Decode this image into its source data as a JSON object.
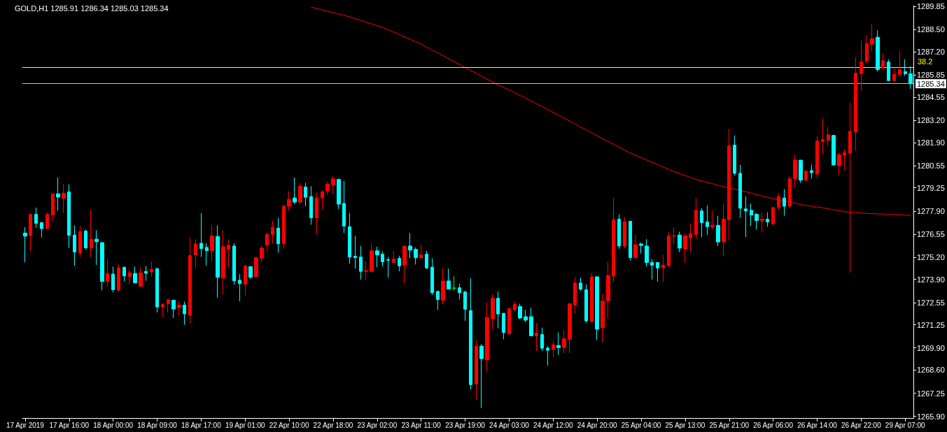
{
  "chart_data": {
    "type": "candlestick",
    "title": "GOLD,H1 1285.91 1286.34 1285.03 1285.34",
    "categories": [
      "17 Apr 2019",
      null,
      null,
      null,
      null,
      null,
      null,
      null,
      "17 Apr 16:00",
      null,
      null,
      null,
      null,
      null,
      null,
      null,
      "18 Apr 00:00",
      null,
      null,
      null,
      null,
      null,
      null,
      null,
      "18 Apr 09:00",
      null,
      null,
      null,
      null,
      null,
      null,
      null,
      "18 Apr 17:00",
      null,
      null,
      null,
      null,
      null,
      null,
      null,
      "19 Apr 01:00",
      null,
      null,
      null,
      null,
      null,
      null,
      null,
      "22 Apr 10:00",
      null,
      null,
      null,
      null,
      null,
      null,
      null,
      "22 Apr 18:00",
      null,
      null,
      null,
      null,
      null,
      null,
      null,
      "23 Apr 02:00",
      null,
      null,
      null,
      null,
      null,
      null,
      null,
      "23 Apr 11:00",
      null,
      null,
      null,
      null,
      null,
      null,
      null,
      "23 Apr 19:00",
      null,
      null,
      null,
      null,
      null,
      null,
      null,
      "24 Apr 03:00",
      null,
      null,
      null,
      null,
      null,
      null,
      null,
      "24 Apr 12:00",
      null,
      null,
      null,
      null,
      null,
      null,
      null,
      "24 Apr 20:00",
      null,
      null,
      null,
      null,
      null,
      null,
      null,
      "25 Apr 04:00",
      null,
      null,
      null,
      null,
      null,
      null,
      null,
      "25 Apr 13:00",
      null,
      null,
      null,
      null,
      null,
      null,
      null,
      "25 Apr 21:00",
      null,
      null,
      null,
      null,
      null,
      null,
      null,
      "26 Apr 06:00",
      null,
      null,
      null,
      null,
      null,
      null,
      null,
      "26 Apr 14:00",
      null,
      null,
      null,
      null,
      null,
      null,
      null,
      "26 Apr 22:00",
      null,
      null,
      null,
      null,
      null,
      null,
      null,
      "29 Apr 07:00",
      null
    ],
    "ohlc": [
      [
        1276.61,
        1276.95,
        1274.9,
        1276.43
      ],
      [
        1276.47,
        1277.74,
        1275.54,
        1277.7
      ],
      [
        1277.7,
        1278.1,
        1276.91,
        1277.18
      ],
      [
        1277.22,
        1277.22,
        1276.35,
        1276.87
      ],
      [
        1276.87,
        1277.82,
        1276.87,
        1277.7
      ],
      [
        1277.67,
        1278.9,
        1277.27,
        1278.9
      ],
      [
        1278.9,
        1279.86,
        1277.91,
        1278.71
      ],
      [
        1278.63,
        1279.46,
        1277.79,
        1278.93
      ],
      [
        1279.02,
        1279.46,
        1275.74,
        1276.47
      ],
      [
        1276.49,
        1277.06,
        1274.7,
        1275.5
      ],
      [
        1275.46,
        1277.02,
        1275.22,
        1276.69
      ],
      [
        1276.73,
        1276.81,
        1275.66,
        1275.74
      ],
      [
        1275.74,
        1277.98,
        1275.22,
        1276.25
      ],
      [
        1276.25,
        1276.77,
        1274.74,
        1276.1
      ],
      [
        1276.05,
        1276.05,
        1273.26,
        1273.78
      ],
      [
        1273.78,
        1275.09,
        1273.46,
        1274.25
      ],
      [
        1274.21,
        1274.65,
        1273.14,
        1273.3
      ],
      [
        1273.26,
        1274.77,
        1273.26,
        1274.57
      ],
      [
        1274.61,
        1274.65,
        1273.78,
        1274.1
      ],
      [
        1274.06,
        1274.45,
        1273.62,
        1274.29
      ],
      [
        1274.25,
        1274.65,
        1273.66,
        1273.7
      ],
      [
        1273.5,
        1274.61,
        1273.5,
        1274.29
      ],
      [
        1274.37,
        1274.69,
        1273.82,
        1274.26
      ],
      [
        1274.34,
        1274.93,
        1274.06,
        1274.49
      ],
      [
        1274.53,
        1274.57,
        1271.97,
        1272.29
      ],
      [
        1272.29,
        1272.52,
        1271.69,
        1272.44
      ],
      [
        1272.49,
        1272.72,
        1271.97,
        1272.72
      ],
      [
        1272.68,
        1272.72,
        1271.65,
        1272.17
      ],
      [
        1272.25,
        1272.64,
        1271.81,
        1272.4
      ],
      [
        1272.4,
        1272.6,
        1271.25,
        1271.89
      ],
      [
        1271.81,
        1276.33,
        1271.33,
        1275.29
      ],
      [
        1275.34,
        1276.25,
        1274.54,
        1275.97
      ],
      [
        1276.01,
        1277.78,
        1275.22,
        1275.7
      ],
      [
        1275.77,
        1276.01,
        1274.7,
        1275.58
      ],
      [
        1275.58,
        1277.06,
        1274.94,
        1276.45
      ],
      [
        1276.41,
        1277.06,
        1272.82,
        1274.02
      ],
      [
        1273.98,
        1276.77,
        1273.02,
        1275.81
      ],
      [
        1275.66,
        1276.25,
        1274.58,
        1275.89
      ],
      [
        1275.85,
        1276.01,
        1273.58,
        1273.82
      ],
      [
        1273.85,
        1274.21,
        1272.62,
        1273.66
      ],
      [
        1273.62,
        1274.77,
        1272.94,
        1274.69
      ],
      [
        1274.65,
        1274.65,
        1273.94,
        1274.02
      ],
      [
        1274.06,
        1275.21,
        1274.02,
        1275.17
      ],
      [
        1275.14,
        1275.85,
        1274.9,
        1275.73
      ],
      [
        1275.9,
        1276.65,
        1275.54,
        1276.53
      ],
      [
        1276.51,
        1277.34,
        1276.02,
        1276.94
      ],
      [
        1276.9,
        1277.5,
        1275.46,
        1275.98
      ],
      [
        1275.98,
        1278.26,
        1275.7,
        1278.18
      ],
      [
        1278.18,
        1279.06,
        1277.91,
        1278.58
      ],
      [
        1278.66,
        1279.86,
        1278.3,
        1278.42
      ],
      [
        1278.42,
        1279.54,
        1278.3,
        1279.34
      ],
      [
        1279.3,
        1279.54,
        1278.18,
        1278.7
      ],
      [
        1278.74,
        1279.34,
        1277.1,
        1277.5
      ],
      [
        1277.5,
        1278.98,
        1276.53,
        1278.66
      ],
      [
        1278.66,
        1279.1,
        1277.98,
        1279.02
      ],
      [
        1279.06,
        1279.62,
        1278.82,
        1279.46
      ],
      [
        1279.42,
        1279.94,
        1278.9,
        1279.78
      ],
      [
        1279.74,
        1279.78,
        1278.02,
        1278.3
      ],
      [
        1278.34,
        1279.66,
        1276.61,
        1277.02
      ],
      [
        1276.98,
        1277.78,
        1274.81,
        1275.21
      ],
      [
        1275.25,
        1276.45,
        1274.53,
        1275.17
      ],
      [
        1275.21,
        1275.85,
        1273.89,
        1274.37
      ],
      [
        1274.37,
        1274.97,
        1273.85,
        1274.41
      ],
      [
        1274.37,
        1276.01,
        1274.29,
        1275.57
      ],
      [
        1275.57,
        1275.81,
        1274.61,
        1275.33
      ],
      [
        1275.37,
        1275.53,
        1274.65,
        1274.93
      ],
      [
        1275.05,
        1275.21,
        1274.01,
        1275.02
      ],
      [
        1274.89,
        1275.57,
        1274.89,
        1275.09
      ],
      [
        1275.13,
        1275.29,
        1274.37,
        1274.69
      ],
      [
        1274.73,
        1275.85,
        1273.65,
        1275.85
      ],
      [
        1275.85,
        1276.61,
        1275.13,
        1275.61
      ],
      [
        1275.65,
        1275.77,
        1274.77,
        1275.17
      ],
      [
        1275.17,
        1275.93,
        1275.09,
        1275.33
      ],
      [
        1275.37,
        1275.57,
        1274.49,
        1274.57
      ],
      [
        1274.61,
        1275.13,
        1273.0,
        1273.12
      ],
      [
        1273.2,
        1273.24,
        1272.12,
        1272.72
      ],
      [
        1272.68,
        1274.53,
        1272.44,
        1273.81
      ],
      [
        1273.81,
        1274.53,
        1273.33,
        1273.33
      ],
      [
        1273.39,
        1274.09,
        1273.24,
        1273.39
      ],
      [
        1273.41,
        1273.65,
        1272.72,
        1273.12
      ],
      [
        1273.16,
        1273.24,
        1271.48,
        1272.16
      ],
      [
        1272.08,
        1273.97,
        1267.47,
        1267.75
      ],
      [
        1267.79,
        1270.36,
        1266.87,
        1270.0
      ],
      [
        1270.0,
        1270.12,
        1266.39,
        1269.27
      ],
      [
        1269.19,
        1272.56,
        1268.51,
        1271.68
      ],
      [
        1271.6,
        1273.04,
        1270.96,
        1272.8
      ],
      [
        1272.8,
        1273.2,
        1271.04,
        1271.88
      ],
      [
        1271.92,
        1271.92,
        1270.4,
        1270.8
      ],
      [
        1270.72,
        1272.2,
        1270.72,
        1272.2
      ],
      [
        1272.12,
        1272.6,
        1272.04,
        1272.44
      ],
      [
        1272.32,
        1272.48,
        1271.56,
        1271.64
      ],
      [
        1271.72,
        1272.12,
        1271.4,
        1271.52
      ],
      [
        1271.72,
        1272.24,
        1270.6,
        1270.6
      ],
      [
        1270.6,
        1271.36,
        1269.72,
        1270.76
      ],
      [
        1270.68,
        1271.08,
        1269.72,
        1269.88
      ],
      [
        1269.88,
        1270.0,
        1268.87,
        1269.76
      ],
      [
        1269.8,
        1270.32,
        1269.36,
        1270.08
      ],
      [
        1270.04,
        1270.8,
        1269.48,
        1269.92
      ],
      [
        1269.92,
        1270.96,
        1269.6,
        1270.44
      ],
      [
        1270.4,
        1272.52,
        1269.6,
        1272.48
      ],
      [
        1272.4,
        1274.05,
        1271.88,
        1273.69
      ],
      [
        1273.69,
        1274.01,
        1273.24,
        1273.33
      ],
      [
        1273.29,
        1273.61,
        1271.36,
        1271.48
      ],
      [
        1271.44,
        1274.29,
        1271.36,
        1274.05
      ],
      [
        1274.05,
        1274.09,
        1270.36,
        1270.99
      ],
      [
        1271.08,
        1273.04,
        1270.2,
        1272.64
      ],
      [
        1272.64,
        1274.93,
        1271.6,
        1274.13
      ],
      [
        1274.09,
        1278.66,
        1273.77,
        1277.38
      ],
      [
        1277.42,
        1277.7,
        1275.69,
        1275.85
      ],
      [
        1275.85,
        1277.54,
        1275.73,
        1277.26
      ],
      [
        1277.3,
        1277.3,
        1275.01,
        1275.17
      ],
      [
        1275.17,
        1276.49,
        1275.13,
        1275.93
      ],
      [
        1275.97,
        1276.05,
        1275.41,
        1275.89
      ],
      [
        1275.85,
        1276.25,
        1274.65,
        1274.89
      ],
      [
        1274.89,
        1275.09,
        1273.89,
        1274.73
      ],
      [
        1274.89,
        1274.89,
        1273.77,
        1274.57
      ],
      [
        1274.57,
        1275.33,
        1273.77,
        1274.73
      ],
      [
        1274.69,
        1276.65,
        1274.65,
        1276.45
      ],
      [
        1276.43,
        1276.94,
        1275.93,
        1276.45
      ],
      [
        1276.49,
        1276.69,
        1275.49,
        1275.73
      ],
      [
        1275.69,
        1276.57,
        1274.85,
        1276.45
      ],
      [
        1276.33,
        1277.17,
        1275.49,
        1276.57
      ],
      [
        1276.53,
        1278.66,
        1276.25,
        1277.94
      ],
      [
        1277.9,
        1278.06,
        1276.37,
        1277.22
      ],
      [
        1277.26,
        1278.22,
        1276.49,
        1276.98
      ],
      [
        1276.98,
        1277.94,
        1276.81,
        1277.06
      ],
      [
        1277.06,
        1277.62,
        1275.85,
        1276.09
      ],
      [
        1276.09,
        1278.3,
        1275.25,
        1277.42
      ],
      [
        1277.38,
        1282.71,
        1276.17,
        1281.71
      ],
      [
        1281.75,
        1282.31,
        1279.98,
        1280.1
      ],
      [
        1280.1,
        1280.59,
        1277.5,
        1278.06
      ],
      [
        1278.02,
        1278.74,
        1276.37,
        1277.9
      ],
      [
        1277.94,
        1278.34,
        1277.02,
        1277.66
      ],
      [
        1277.7,
        1277.78,
        1276.81,
        1277.34
      ],
      [
        1277.34,
        1277.82,
        1276.65,
        1277.42
      ],
      [
        1277.42,
        1277.82,
        1276.98,
        1277.26
      ],
      [
        1277.14,
        1278.1,
        1277.06,
        1278.1
      ],
      [
        1278.1,
        1278.9,
        1277.94,
        1278.74
      ],
      [
        1278.66,
        1279.18,
        1277.62,
        1278.18
      ],
      [
        1278.18,
        1279.94,
        1278.06,
        1279.78
      ],
      [
        1279.78,
        1281.19,
        1279.3,
        1280.87
      ],
      [
        1280.87,
        1280.87,
        1279.54,
        1279.7
      ],
      [
        1279.7,
        1280.3,
        1279.58,
        1280.22
      ],
      [
        1280.26,
        1280.59,
        1279.78,
        1280.14
      ],
      [
        1280.06,
        1282.27,
        1279.82,
        1281.99
      ],
      [
        1281.95,
        1283.31,
        1281.19,
        1282.07
      ],
      [
        1282.03,
        1282.79,
        1281.71,
        1282.35
      ],
      [
        1282.31,
        1282.35,
        1280.55,
        1280.59
      ],
      [
        1280.55,
        1281.31,
        1279.98,
        1281.19
      ],
      [
        1281.15,
        1281.51,
        1280.26,
        1281.31
      ],
      [
        1281.27,
        1284.23,
        1274.29,
        1282.55
      ],
      [
        1282.51,
        1286.88,
        1281.43,
        1285.96
      ],
      [
        1285.92,
        1287.84,
        1284.92,
        1286.6
      ],
      [
        1286.64,
        1288.17,
        1286.56,
        1287.68
      ],
      [
        1287.64,
        1288.81,
        1287.24,
        1287.96
      ],
      [
        1288.05,
        1288.45,
        1286.04,
        1286.16
      ],
      [
        1286.24,
        1287.12,
        1286.2,
        1286.68
      ],
      [
        1286.6,
        1286.76,
        1285.48,
        1285.52
      ],
      [
        1285.52,
        1286.28,
        1285.48,
        1285.88
      ],
      [
        1285.88,
        1287.24,
        1285.76,
        1286.16
      ],
      [
        1286.04,
        1286.76,
        1285.8,
        1285.92
      ],
      [
        1285.91,
        1286.34,
        1285.03,
        1285.34
      ]
    ],
    "colors": [
      "#00ffff",
      "#ff0000",
      "#00ffff",
      "#00ffff",
      "#ff0000",
      "#ff0000",
      "#00ffff",
      "#ff0000",
      "#00ffff",
      "#00ffff",
      "#ff0000",
      "#00ffff",
      "#ff0000",
      "#00ffff",
      "#00ffff",
      "#ff0000",
      "#00ffff",
      "#ff0000",
      "#00ffff",
      "#ff0000",
      "#00ffff",
      "#ff0000",
      "#00ffff",
      "#ff0000",
      "#00ffff",
      "#ff0000",
      "#ff0000",
      "#00ffff",
      "#ff0000",
      "#00ffff",
      "#ff0000",
      "#ff0000",
      "#00ffff",
      "#00ffff",
      "#ff0000",
      "#00ffff",
      "#ff0000",
      "#ff0000",
      "#00ffff",
      "#00ffff",
      "#ff0000",
      "#00ffff",
      "#ff0000",
      "#ff0000",
      "#ff0000",
      "#ff0000",
      "#00ffff",
      "#ff0000",
      "#ff0000",
      "#00ffff",
      "#ff0000",
      "#00ffff",
      "#00ffff",
      "#ff0000",
      "#ff0000",
      "#ff0000",
      "#ff0000",
      "#00ffff",
      "#00ffff",
      "#00ffff",
      "#00ffff",
      "#00ffff",
      "#ff0000",
      "#ff0000",
      "#00ffff",
      "#00ffff",
      "#00ffff",
      "#ff0000",
      "#00ffff",
      "#ff0000",
      "#00ffff",
      "#00ffff",
      "#ff0000",
      "#00ffff",
      "#00ffff",
      "#00ffff",
      "#ff0000",
      "#00ffff",
      "#00ff00",
      "#00ffff",
      "#00ffff",
      "#00ffff",
      "#ff0000",
      "#00ffff",
      "#ff0000",
      "#ff0000",
      "#00ffff",
      "#00ffff",
      "#ff0000",
      "#ff0000",
      "#00ffff",
      "#00ffff",
      "#00ffff",
      "#ff0000",
      "#00ffff",
      "#00ffff",
      "#ff0000",
      "#00ffff",
      "#ff0000",
      "#ff0000",
      "#ff0000",
      "#00ffff",
      "#00ffff",
      "#ff0000",
      "#00ffff",
      "#ff0000",
      "#ff0000",
      "#ff0000",
      "#00ffff",
      "#ff0000",
      "#00ffff",
      "#ff0000",
      "#00ffff",
      "#00ffff",
      "#00ffff",
      "#00ffff",
      "#ff0000",
      "#ff0000",
      "#ff0000",
      "#00ffff",
      "#ff0000",
      "#ff0000",
      "#ff0000",
      "#00ffff",
      "#00ffff",
      "#ff0000",
      "#00ffff",
      "#ff0000",
      "#ff0000",
      "#00ffff",
      "#00ffff",
      "#00ffff",
      "#00ffff",
      "#00ffff",
      "#ff0000",
      "#00ffff",
      "#ff0000",
      "#ff0000",
      "#00ffff",
      "#ff0000",
      "#ff0000",
      "#00ffff",
      "#ff0000",
      "#00ffff",
      "#ff0000",
      "#ff0000",
      "#ff0000",
      "#00ffff",
      "#ff0000",
      "#ff0000",
      "#ff0000",
      "#ff0000",
      "#ff0000",
      "#ff0000",
      "#ff0000",
      "#00ffff",
      "#ff0000",
      "#00ffff",
      "#ff0000",
      "#ff0000",
      "#00ffff",
      "#00ffff"
    ],
    "series": [
      {
        "type": "line",
        "color": "#ff0000",
        "values": [
          null,
          null,
          null,
          null,
          null,
          null,
          null,
          null,
          null,
          null,
          null,
          null,
          null,
          null,
          null,
          null,
          null,
          null,
          null,
          null,
          null,
          null,
          null,
          null,
          null,
          null,
          null,
          null,
          null,
          null,
          null,
          null,
          null,
          null,
          null,
          null,
          null,
          null,
          null,
          null,
          null,
          null,
          null,
          null,
          null,
          null,
          null,
          null,
          null,
          null,
          null,
          null,
          1289.81,
          1289.73,
          1289.65,
          1289.57,
          1289.49,
          1289.41,
          1289.33,
          1289.24,
          1289.14,
          1289.04,
          1288.93,
          1288.83,
          1288.73,
          1288.63,
          1288.49,
          1288.35,
          1288.21,
          1288.07,
          1287.93,
          1287.79,
          1287.65,
          1287.48,
          1287.31,
          1287.14,
          1286.97,
          1286.8,
          1286.63,
          1286.46,
          1286.28,
          1286.11,
          1285.94,
          1285.77,
          1285.6,
          1285.43,
          1285.27,
          1285.12,
          1284.97,
          1284.81,
          1284.65,
          1284.49,
          1284.33,
          1284.16,
          1284.0,
          1283.83,
          1283.66,
          1283.49,
          1283.32,
          1283.15,
          1282.98,
          1282.81,
          1282.64,
          1282.47,
          1282.3,
          1282.13,
          1281.96,
          1281.79,
          1281.62,
          1281.45,
          1281.29,
          1281.15,
          1281.02,
          1280.88,
          1280.74,
          1280.61,
          1280.47,
          1280.33,
          1280.2,
          1280.08,
          1279.97,
          1279.86,
          1279.74,
          1279.65,
          1279.57,
          1279.49,
          1279.4,
          1279.32,
          1279.24,
          1279.17,
          1279.1,
          1279.03,
          1278.94,
          1278.86,
          1278.77,
          1278.69,
          1278.62,
          1278.56,
          1278.49,
          1278.42,
          1278.35,
          1278.28,
          1278.22,
          1278.18,
          1278.13,
          1278.08,
          1278.03,
          1277.97,
          1277.92,
          1277.86,
          1277.81,
          1277.79,
          1277.77,
          1277.76,
          1277.74,
          1277.73,
          1277.72,
          1277.71,
          1277.7,
          1277.68,
          1277.66,
          1277.64
        ]
      }
    ],
    "ylim": [
      1265.8,
      1289.9
    ],
    "yticks": [
      {
        "value": 1265.9,
        "label": "1265.90"
      },
      {
        "value": 1267.25,
        "label": "1267.25"
      },
      {
        "value": 1268.6,
        "label": "1268.60"
      },
      {
        "value": 1269.9,
        "label": "1269.90"
      },
      {
        "value": 1271.25,
        "label": "1271.25"
      },
      {
        "value": 1272.55,
        "label": "1272.55"
      },
      {
        "value": 1273.9,
        "label": "1273.90"
      },
      {
        "value": 1275.2,
        "label": "1275.20"
      },
      {
        "value": 1276.55,
        "label": "1276.55"
      },
      {
        "value": 1277.9,
        "label": "1277.90"
      },
      {
        "value": 1279.25,
        "label": "1279.25"
      },
      {
        "value": 1280.55,
        "label": "1280.55"
      },
      {
        "value": 1281.9,
        "label": "1281.90"
      },
      {
        "value": 1283.2,
        "label": "1283.20"
      },
      {
        "value": 1284.55,
        "label": "1284.55"
      },
      {
        "value": 1285.85,
        "label": "1285.85"
      },
      {
        "value": 1287.2,
        "label": "1287.20"
      },
      {
        "value": 1288.5,
        "label": "1288.50"
      },
      {
        "value": 1289.85,
        "label": "1289.85"
      }
    ],
    "annotations": [
      "38.2"
    ],
    "ref_lines": [
      {
        "axis": "y",
        "value": 1286.31,
        "color": "#ffff00"
      },
      {
        "axis": "y",
        "value": 1285.34,
        "label": "1285.34",
        "color": "#c0c0c0"
      }
    ],
    "grid": false,
    "marker": "none"
  }
}
